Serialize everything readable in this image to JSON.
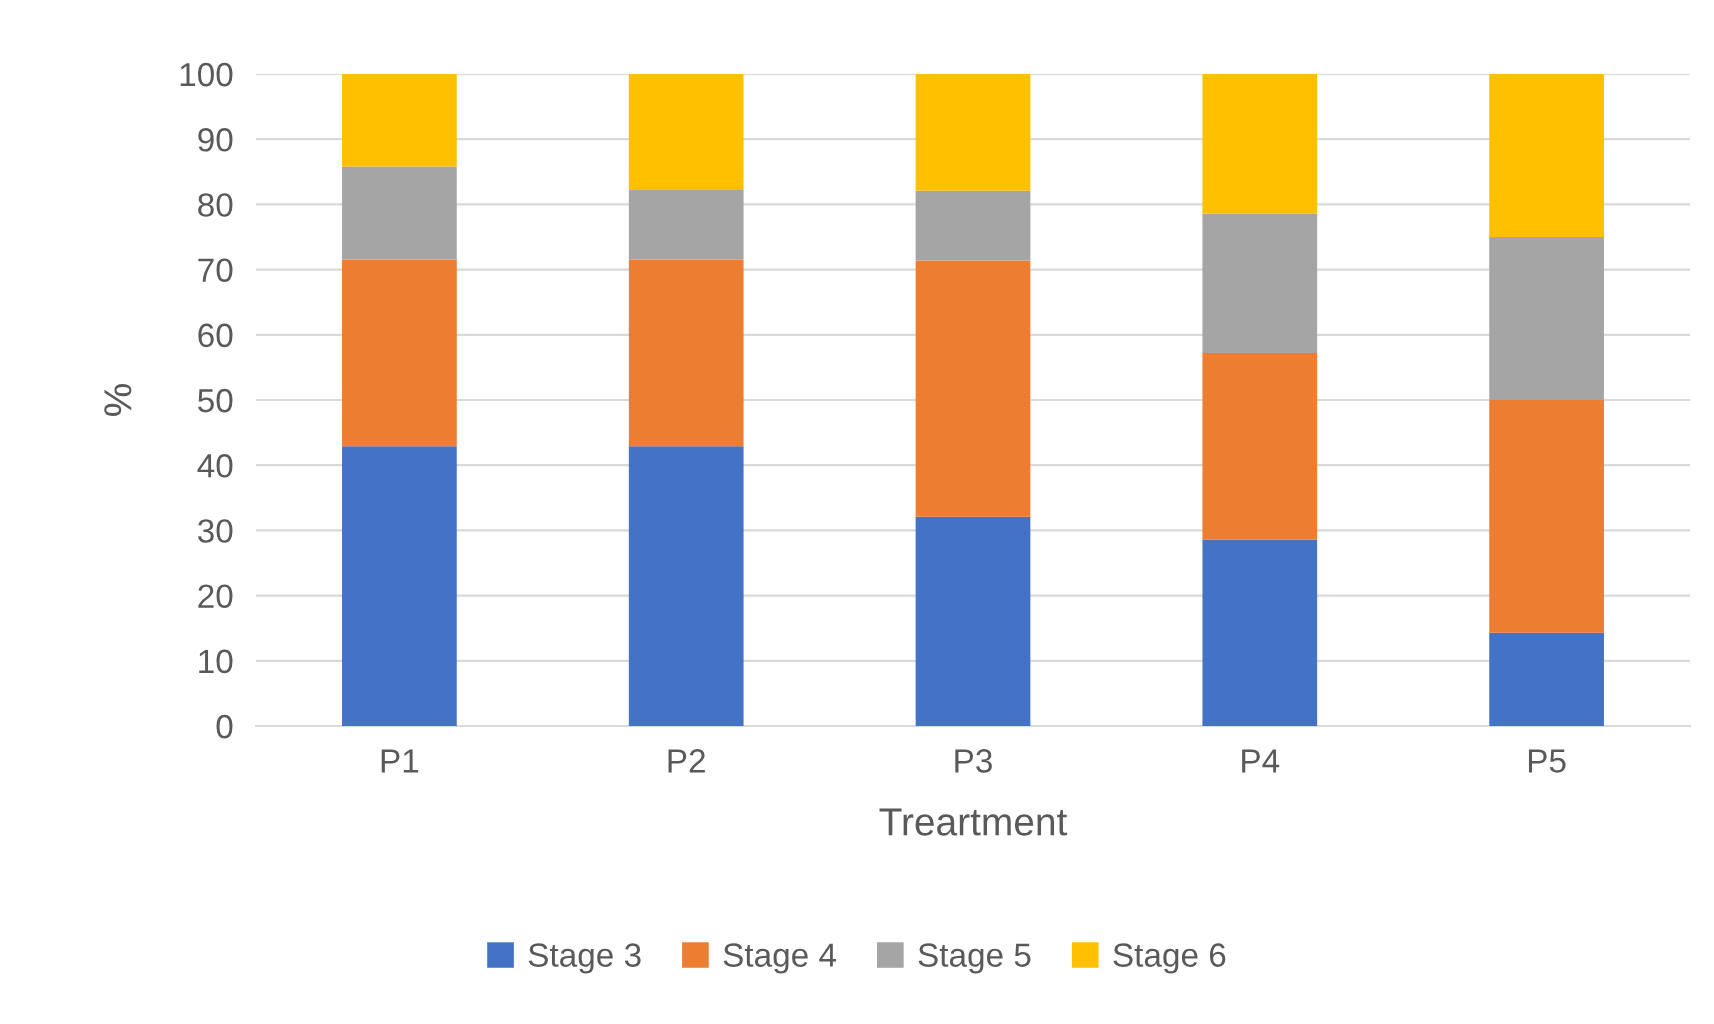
{
  "chart_data": {
    "type": "bar",
    "stacked": true,
    "xlabel": "Treartment",
    "ylabel": "%",
    "categories": [
      "P1",
      "P2",
      "P3",
      "P4",
      "P5"
    ],
    "series": [
      {
        "name": "Stage 3",
        "color": "#4472c4",
        "values": [
          42.9,
          42.9,
          32.1,
          28.6,
          14.3
        ]
      },
      {
        "name": "Stage 4",
        "color": "#ed7d31",
        "values": [
          28.6,
          28.6,
          39.3,
          28.6,
          35.7
        ]
      },
      {
        "name": "Stage 5",
        "color": "#a5a5a5",
        "values": [
          14.3,
          10.7,
          10.7,
          21.4,
          25
        ]
      },
      {
        "name": "Stage 6",
        "color": "#ffc000",
        "values": [
          14.2,
          17.8,
          17.9,
          21.4,
          25
        ]
      }
    ],
    "ylim": [
      0,
      100
    ],
    "yticks": [
      0,
      10,
      20,
      30,
      40,
      50,
      60,
      70,
      80,
      90,
      100
    ],
    "grid": "y",
    "legend": "bottom"
  }
}
